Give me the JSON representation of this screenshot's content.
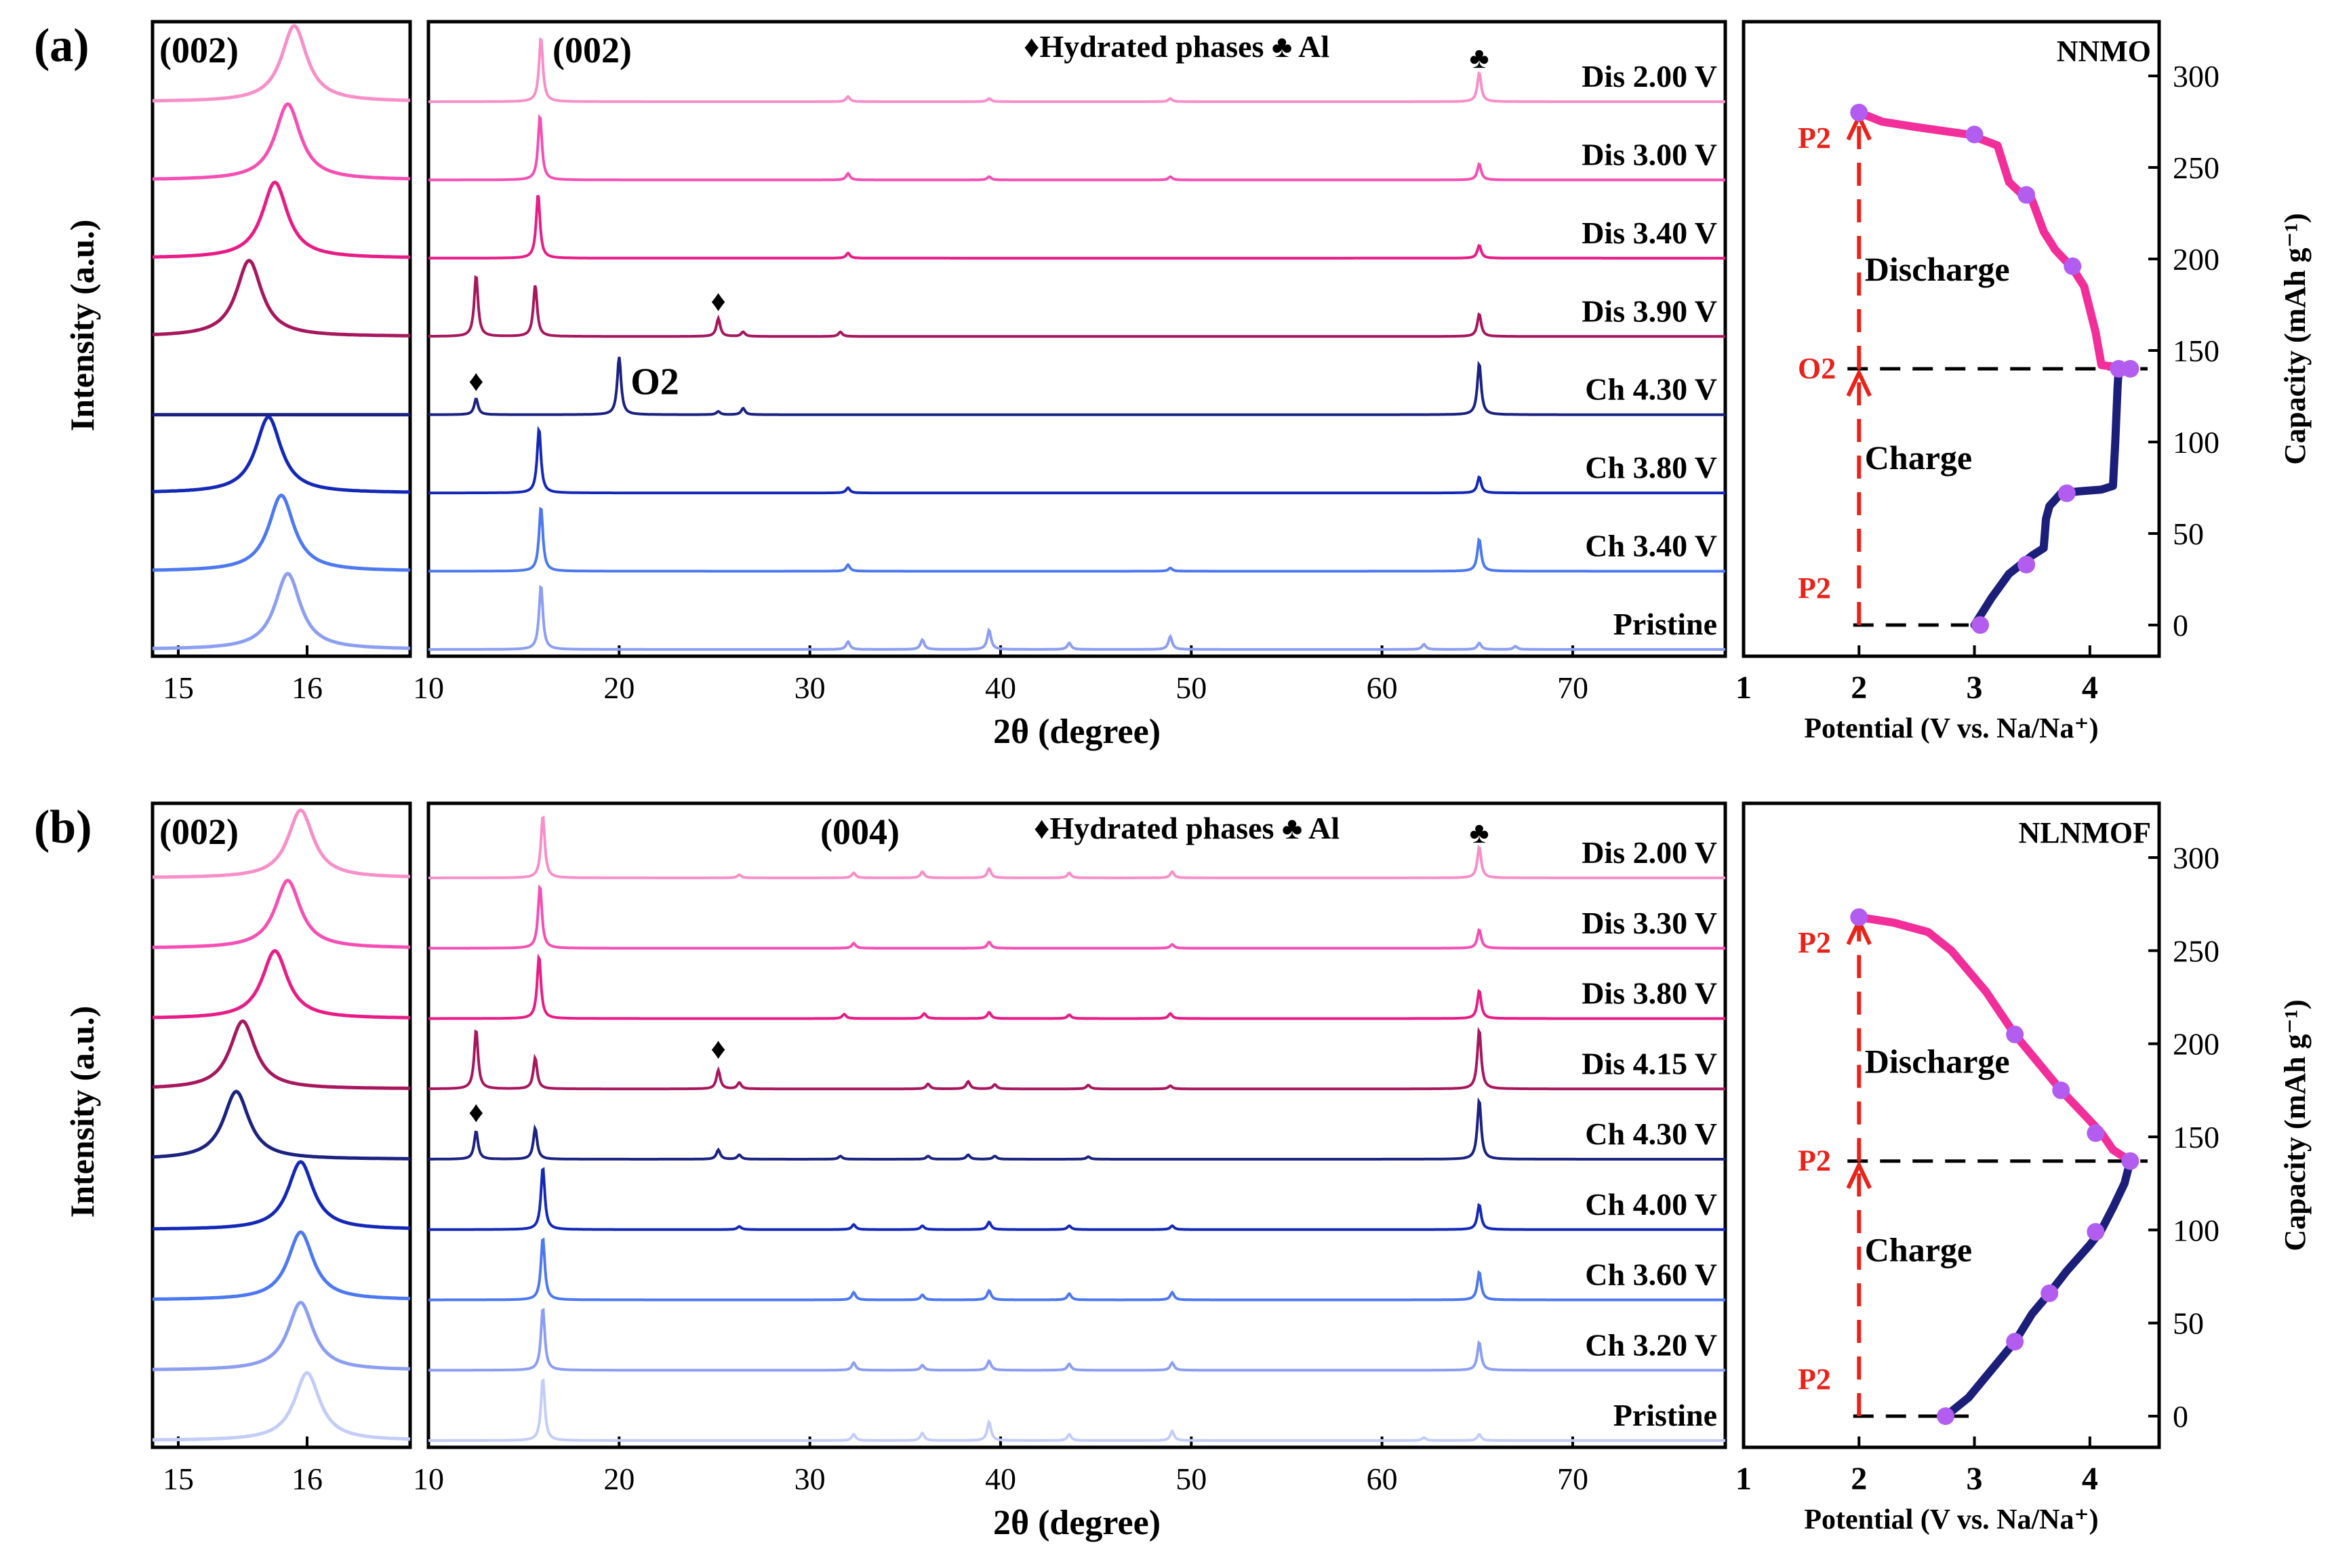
{
  "chart_data": [
    {
      "panel": "(a)",
      "type": "line",
      "subtype": "stacked XRD patterns with voltage profile",
      "ylabel": "Intensity (a.u.)",
      "xlabel": "2θ (degree)",
      "legend": "♦Hydrated phases ♣ Al",
      "zoom": {
        "annotation": "(002)",
        "xlim": [
          14.8,
          16.8
        ],
        "xticks": [
          15,
          16
        ],
        "peaks": [
          15.9,
          15.85,
          15.75,
          15.55,
          null,
          15.7,
          15.8,
          15.85
        ]
      },
      "main": {
        "annotation": "(002)",
        "xlim": [
          10,
          78
        ],
        "xticks": [
          10,
          20,
          30,
          40,
          50,
          60,
          70
        ],
        "features": [
          "♣",
          "♦",
          "♦",
          "O2"
        ],
        "series": [
          {
            "name": "Dis 2.00 V",
            "color": "#f78fc9",
            "peaks": [
              [
                15.9,
                1.0
              ],
              [
                32.0,
                0.08
              ],
              [
                39.4,
                0.05
              ],
              [
                48.9,
                0.05
              ],
              [
                65.1,
                0.45
              ]
            ]
          },
          {
            "name": "Dis 3.00 V",
            "color": "#f450b4",
            "peaks": [
              [
                15.85,
                1.0
              ],
              [
                32.0,
                0.1
              ],
              [
                39.4,
                0.05
              ],
              [
                48.9,
                0.05
              ],
              [
                65.1,
                0.25
              ]
            ]
          },
          {
            "name": "Dis 3.40 V",
            "color": "#e81c86",
            "peaks": [
              [
                15.75,
                1.0
              ],
              [
                32.0,
                0.08
              ],
              [
                65.1,
                0.2
              ]
            ]
          },
          {
            "name": "Dis 3.90 V",
            "color": "#a6175e",
            "peaks": [
              [
                12.5,
                0.95
              ],
              [
                15.6,
                0.8
              ],
              [
                25.2,
                0.28
              ],
              [
                26.5,
                0.07
              ],
              [
                31.6,
                0.07
              ],
              [
                65.1,
                0.35
              ]
            ]
          },
          {
            "name": "Ch 4.30 V",
            "color": "#1b227f",
            "peaks": [
              [
                12.5,
                0.25
              ],
              [
                20.0,
                0.9
              ],
              [
                25.2,
                0.05
              ],
              [
                26.5,
                0.1
              ],
              [
                65.1,
                0.8
              ]
            ]
          },
          {
            "name": "Ch 3.80 V",
            "color": "#1428b8",
            "peaks": [
              [
                15.8,
                1.0
              ],
              [
                32.0,
                0.08
              ],
              [
                65.1,
                0.25
              ]
            ]
          },
          {
            "name": "Ch 3.40 V",
            "color": "#4c78f0",
            "peaks": [
              [
                15.9,
                1.0
              ],
              [
                32.0,
                0.1
              ],
              [
                48.9,
                0.05
              ],
              [
                65.1,
                0.5
              ]
            ]
          },
          {
            "name": "Pristine",
            "color": "#8c9ef2",
            "peaks": [
              [
                15.9,
                1.0
              ],
              [
                32.0,
                0.12
              ],
              [
                35.9,
                0.15
              ],
              [
                39.4,
                0.3
              ],
              [
                43.6,
                0.1
              ],
              [
                48.9,
                0.2
              ],
              [
                62.2,
                0.08
              ],
              [
                65.1,
                0.1
              ],
              [
                67.0,
                0.05
              ]
            ]
          }
        ]
      },
      "profile": {
        "title": "NNMO",
        "xlabel": "Potential  (V vs. Na/Na⁺)",
        "ylabel": "Capacity (mAh g⁻¹)",
        "xlim": [
          1,
          4.6
        ],
        "ylim": [
          0,
          300
        ],
        "xticks": [
          1,
          2,
          3,
          4
        ],
        "yticks": [
          0,
          50,
          100,
          150,
          200,
          250,
          300
        ],
        "charge_label": "Charge",
        "discharge_label": "Discharge",
        "phase_labels": [
          {
            "text": "P2",
            "y": 0
          },
          {
            "text": "O2",
            "y": 140
          },
          {
            "text": "P2",
            "y": 280
          }
        ],
        "charge_curve": [
          [
            3.0,
            0
          ],
          [
            3.15,
            15
          ],
          [
            3.3,
            28
          ],
          [
            3.4,
            33
          ],
          [
            3.5,
            38
          ],
          [
            3.6,
            42
          ],
          [
            3.62,
            58
          ],
          [
            3.65,
            65
          ],
          [
            3.75,
            72
          ],
          [
            3.9,
            73
          ],
          [
            4.1,
            74
          ],
          [
            4.2,
            76
          ],
          [
            4.22,
            100
          ],
          [
            4.24,
            130
          ],
          [
            4.25,
            140
          ]
        ],
        "charge_dots": [
          [
            3.05,
            0
          ],
          [
            3.45,
            33
          ],
          [
            3.8,
            72
          ],
          [
            4.25,
            140
          ]
        ],
        "discharge_curve": [
          [
            4.35,
            140
          ],
          [
            4.1,
            142
          ],
          [
            4.05,
            160
          ],
          [
            3.95,
            185
          ],
          [
            3.85,
            195
          ],
          [
            3.7,
            205
          ],
          [
            3.6,
            215
          ],
          [
            3.5,
            232
          ],
          [
            3.4,
            236
          ],
          [
            3.3,
            242
          ],
          [
            3.2,
            262
          ],
          [
            2.95,
            268
          ],
          [
            2.5,
            272
          ],
          [
            2.2,
            275
          ],
          [
            2.0,
            280
          ]
        ],
        "discharge_dots": [
          [
            3.0,
            268
          ],
          [
            3.45,
            235
          ],
          [
            3.85,
            196
          ],
          [
            4.35,
            140
          ],
          [
            2.0,
            280
          ]
        ],
        "dashed_y": 140
      }
    },
    {
      "panel": "(b)",
      "type": "line",
      "subtype": "stacked XRD patterns with voltage profile",
      "ylabel": "Intensity (a.u.)",
      "xlabel": "2θ (degree)",
      "legend": "♦Hydrated phases ♣ Al",
      "zoom": {
        "annotation": "(002)",
        "xlim": [
          14.8,
          16.8
        ],
        "xticks": [
          15,
          16
        ],
        "peaks": [
          15.95,
          15.85,
          15.75,
          15.5,
          15.45,
          15.95,
          15.95,
          15.95,
          16.0
        ]
      },
      "main": {
        "annotation": "(004)",
        "xlim": [
          10,
          78
        ],
        "xticks": [
          10,
          20,
          30,
          40,
          50,
          60,
          70
        ],
        "features": [
          "♣",
          "♦",
          "♦"
        ],
        "series": [
          {
            "name": "Dis 2.00 V",
            "color": "#f78fc9",
            "peaks": [
              [
                16.0,
                1.0
              ],
              [
                26.3,
                0.05
              ],
              [
                32.3,
                0.08
              ],
              [
                35.9,
                0.1
              ],
              [
                39.4,
                0.15
              ],
              [
                43.6,
                0.08
              ],
              [
                49.0,
                0.1
              ],
              [
                65.1,
                0.5
              ]
            ]
          },
          {
            "name": "Dis 3.30 V",
            "color": "#f450b4",
            "peaks": [
              [
                15.85,
                1.0
              ],
              [
                32.3,
                0.08
              ],
              [
                39.4,
                0.1
              ],
              [
                49.0,
                0.06
              ],
              [
                65.1,
                0.3
              ]
            ]
          },
          {
            "name": "Dis 3.80 V",
            "color": "#e81c86",
            "peaks": [
              [
                15.8,
                1.0
              ],
              [
                31.8,
                0.07
              ],
              [
                36.0,
                0.08
              ],
              [
                39.4,
                0.1
              ],
              [
                43.6,
                0.06
              ],
              [
                48.9,
                0.08
              ],
              [
                65.1,
                0.45
              ]
            ]
          },
          {
            "name": "Dis 4.15 V",
            "color": "#a6175e",
            "peaks": [
              [
                12.5,
                0.95
              ],
              [
                15.6,
                0.5
              ],
              [
                25.2,
                0.3
              ],
              [
                26.3,
                0.1
              ],
              [
                36.2,
                0.08
              ],
              [
                38.3,
                0.12
              ],
              [
                39.7,
                0.07
              ],
              [
                44.6,
                0.06
              ],
              [
                48.9,
                0.05
              ],
              [
                65.1,
                0.95
              ]
            ]
          },
          {
            "name": "Ch 4.30 V",
            "color": "#1b227f",
            "peaks": [
              [
                12.5,
                0.45
              ],
              [
                15.6,
                0.5
              ],
              [
                25.2,
                0.15
              ],
              [
                26.3,
                0.07
              ],
              [
                31.6,
                0.05
              ],
              [
                36.2,
                0.05
              ],
              [
                38.3,
                0.07
              ],
              [
                39.7,
                0.05
              ],
              [
                44.6,
                0.04
              ],
              [
                65.1,
                0.95
              ]
            ]
          },
          {
            "name": "Ch 4.00 V",
            "color": "#1428b8",
            "peaks": [
              [
                16.0,
                1.0
              ],
              [
                26.3,
                0.05
              ],
              [
                32.3,
                0.08
              ],
              [
                35.9,
                0.06
              ],
              [
                39.4,
                0.12
              ],
              [
                43.6,
                0.06
              ],
              [
                49.0,
                0.06
              ],
              [
                65.1,
                0.4
              ]
            ]
          },
          {
            "name": "Ch 3.60 V",
            "color": "#4c78f0",
            "peaks": [
              [
                16.0,
                1.0
              ],
              [
                32.3,
                0.12
              ],
              [
                35.9,
                0.08
              ],
              [
                39.4,
                0.15
              ],
              [
                43.6,
                0.1
              ],
              [
                49.0,
                0.12
              ],
              [
                65.1,
                0.45
              ]
            ]
          },
          {
            "name": "Ch 3.20 V",
            "color": "#8c9ef2",
            "peaks": [
              [
                16.0,
                1.0
              ],
              [
                32.3,
                0.12
              ],
              [
                35.9,
                0.08
              ],
              [
                39.4,
                0.15
              ],
              [
                43.6,
                0.1
              ],
              [
                49.0,
                0.12
              ],
              [
                65.1,
                0.45
              ]
            ]
          },
          {
            "name": "Pristine",
            "color": "#c3cdf7",
            "peaks": [
              [
                16.0,
                1.0
              ],
              [
                32.3,
                0.1
              ],
              [
                35.9,
                0.12
              ],
              [
                39.4,
                0.3
              ],
              [
                43.6,
                0.1
              ],
              [
                49.0,
                0.15
              ],
              [
                62.2,
                0.05
              ],
              [
                65.1,
                0.1
              ]
            ]
          }
        ]
      },
      "profile": {
        "title": "NLNMOF",
        "xlabel": "Potential  (V vs. Na/Na⁺)",
        "ylabel": "Capacity (mAh g⁻¹)",
        "xlim": [
          1,
          4.6
        ],
        "ylim": [
          0,
          300
        ],
        "xticks": [
          1,
          2,
          3,
          4
        ],
        "yticks": [
          0,
          50,
          100,
          150,
          200,
          250,
          300
        ],
        "charge_label": "Charge",
        "discharge_label": "Discharge",
        "phase_labels": [
          {
            "text": "P2",
            "y": 0
          },
          {
            "text": "P2",
            "y": 137
          },
          {
            "text": "P2",
            "y": 268
          }
        ],
        "charge_curve": [
          [
            2.75,
            0
          ],
          [
            2.95,
            10
          ],
          [
            3.15,
            25
          ],
          [
            3.35,
            40
          ],
          [
            3.5,
            55
          ],
          [
            3.65,
            66
          ],
          [
            3.8,
            78
          ],
          [
            4.0,
            92
          ],
          [
            4.1,
            100
          ],
          [
            4.2,
            112
          ],
          [
            4.3,
            125
          ],
          [
            4.35,
            137
          ]
        ],
        "charge_dots": [
          [
            2.75,
            0
          ],
          [
            3.35,
            40
          ],
          [
            3.65,
            66
          ],
          [
            4.05,
            99
          ]
        ],
        "discharge_curve": [
          [
            4.35,
            137
          ],
          [
            4.2,
            143
          ],
          [
            4.1,
            152
          ],
          [
            3.95,
            162
          ],
          [
            3.75,
            175
          ],
          [
            3.55,
            190
          ],
          [
            3.35,
            205
          ],
          [
            3.1,
            228
          ],
          [
            2.8,
            250
          ],
          [
            2.6,
            260
          ],
          [
            2.3,
            265
          ],
          [
            2.0,
            268
          ]
        ],
        "discharge_dots": [
          [
            4.05,
            152
          ],
          [
            3.75,
            175
          ],
          [
            3.35,
            205
          ],
          [
            4.35,
            137
          ],
          [
            2.0,
            268
          ]
        ],
        "dashed_y": 137
      }
    }
  ]
}
